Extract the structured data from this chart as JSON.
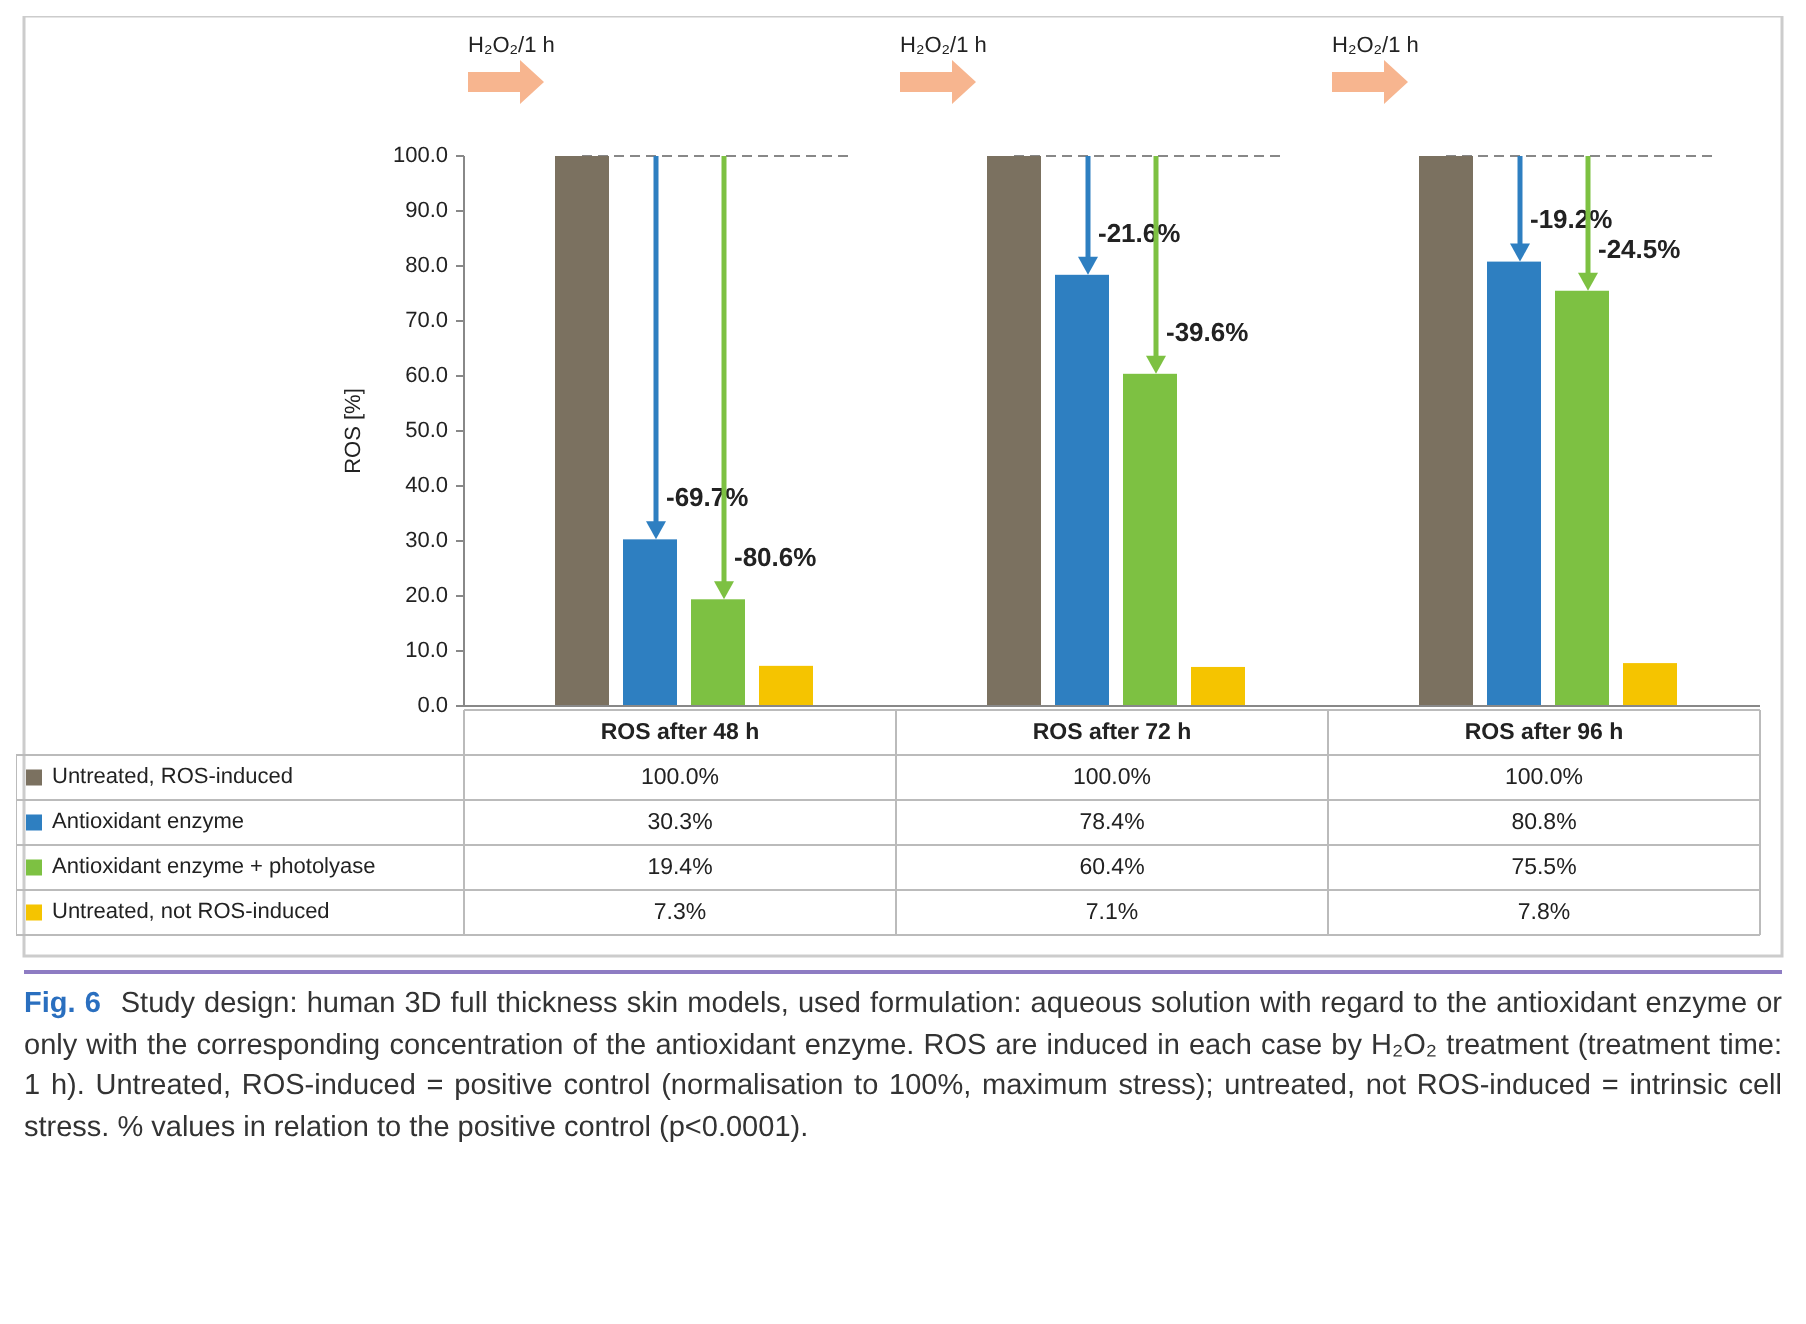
{
  "chart_data": {
    "type": "bar",
    "ylabel": "ROS [%]",
    "categories": [
      "ROS after 48 h",
      "ROS after 72 h",
      "ROS after 96 h"
    ],
    "ylim": [
      0,
      100
    ],
    "yticks": [
      {
        "value": 0,
        "label": "0.0"
      },
      {
        "value": 10,
        "label": "10.0"
      },
      {
        "value": 20,
        "label": "20.0"
      },
      {
        "value": 30,
        "label": "30.0"
      },
      {
        "value": 40,
        "label": "40.0"
      },
      {
        "value": 50,
        "label": "50.0"
      },
      {
        "value": 60,
        "label": "60.0"
      },
      {
        "value": 70,
        "label": "70.0"
      },
      {
        "value": 80,
        "label": "80.0"
      },
      {
        "value": 90,
        "label": "90.0"
      },
      {
        "value": 100,
        "label": "100.0"
      }
    ],
    "series": [
      {
        "name": "Untreated, ROS-induced",
        "color": "#7b7160",
        "values": [
          100,
          100,
          100
        ],
        "value_labels": [
          "100.0%",
          "100.0%",
          "100.0%"
        ]
      },
      {
        "name": "Antioxidant enzyme",
        "color": "#2e7fc1",
        "values": [
          30.3,
          78.4,
          80.8
        ],
        "value_labels": [
          "30.3%",
          "78.4%",
          "80.8%"
        ]
      },
      {
        "name": "Antioxidant enzyme + photolyase",
        "color": "#7dc142",
        "values": [
          19.4,
          60.4,
          75.5
        ],
        "value_labels": [
          "19.4%",
          "60.4%",
          "75.5%"
        ]
      },
      {
        "name": "Untreated, not ROS-induced",
        "color": "#f5c400",
        "values": [
          7.3,
          7.1,
          7.8
        ],
        "value_labels": [
          "7.3%",
          "7.1%",
          "7.8%"
        ]
      }
    ],
    "ref_lines": [
      {
        "axis": "y",
        "value": 100,
        "line_style": "dashed",
        "color": "#888888"
      }
    ],
    "legend": "bottom",
    "annotations": [
      "H₂O₂/1 h",
      "H₂O₂/1 h",
      "H₂O₂/1 h",
      {
        "text": "-69.7%",
        "x": "ROS after 48 h",
        "y": 30.3
      },
      {
        "text": "-80.6%",
        "x": "ROS after 48 h",
        "y": 19.4
      },
      {
        "text": "-21.6%",
        "x": "ROS after 72 h",
        "y": 78.4
      },
      {
        "text": "-39.6%",
        "x": "ROS after 72 h",
        "y": 60.4
      },
      {
        "text": "-19.2%",
        "x": "ROS after 96 h",
        "y": 80.8
      },
      {
        "text": "-24.5%",
        "x": "ROS after 96 h",
        "y": 75.5
      },
      "Fig. 6",
      "Study design: human 3D full thickness skin models, used formulation: aqueous solution with regard to the antioxidant enzyme or only with the corresponding concentration of the antioxidant enzyme. ROS are induced in each case by H₂O₂ treatment (treatment time: 1 h). Untreated, ROS-induced = positive control (normalisation to 100%, maximum stress); untreated, not ROS-induced = intrinsic cell stress. % values in relation to the positive control (p<0.0001)."
    ]
  }
}
